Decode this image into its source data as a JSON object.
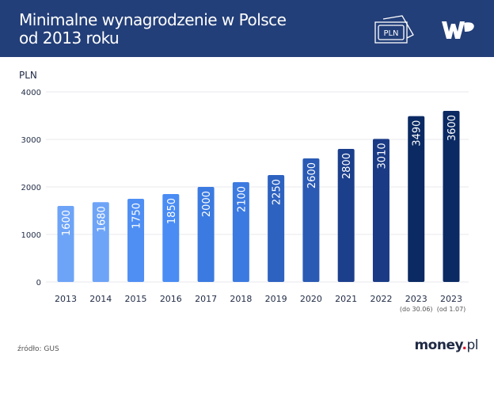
{
  "header": {
    "title_line1": "Minimalne wynagrodzenie w Polsce",
    "title_line2": "od 2013 roku",
    "icon": "banknote-pln-icon",
    "icon_text": "PLN",
    "logo": "WP",
    "bg_color": "#233f79"
  },
  "footer": {
    "source": "źródło: GUS",
    "brand_main": "money",
    "brand_dot": ".",
    "brand_suffix": "pl"
  },
  "chart_data": {
    "type": "bar",
    "ylabel": "PLN",
    "ylim": [
      0,
      4000
    ],
    "yticks": [
      0,
      1000,
      2000,
      3000,
      4000
    ],
    "grid": true,
    "categories": [
      "2013",
      "2014",
      "2015",
      "2016",
      "2017",
      "2018",
      "2019",
      "2020",
      "2021",
      "2022",
      "2023",
      "2023"
    ],
    "category_notes": [
      "",
      "",
      "",
      "",
      "",
      "",
      "",
      "",
      "",
      "",
      "(do 30.06)",
      "(od 1.07)"
    ],
    "values": [
      1600,
      1680,
      1750,
      1850,
      2000,
      2100,
      2250,
      2600,
      2800,
      3010,
      3490,
      3600
    ],
    "colors": [
      "#6ea4f7",
      "#6ea4f7",
      "#4f8ff4",
      "#4a8cf4",
      "#3b7ae0",
      "#3b7ae0",
      "#2e62c0",
      "#2a5ab4",
      "#1c3f8c",
      "#1a3a85",
      "#0b2a63",
      "#0b2a63"
    ]
  }
}
